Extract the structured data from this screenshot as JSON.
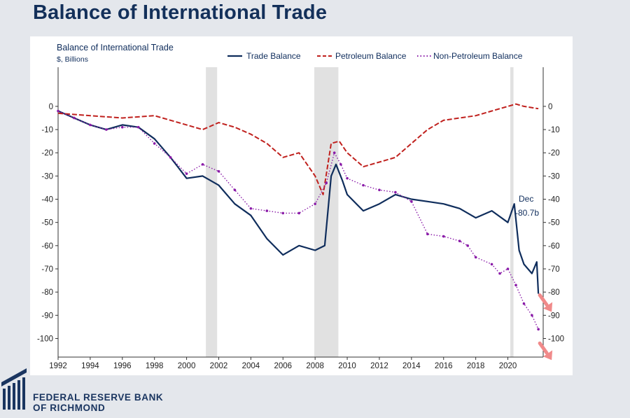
{
  "slide_title": "Balance of International Trade",
  "logo": {
    "line1": "FEDERAL RESERVE BANK",
    "line2": "OF RICHMOND",
    "mark": "building-columns-logo"
  },
  "colors": {
    "trade": "#0f2d5c",
    "petroleum": "#c0211e",
    "nonpetroleum": "#8a1ba8",
    "recession": "#d9d9d9",
    "arrow": "#f08a8a"
  },
  "chart_data": {
    "type": "line",
    "title": "Balance of International Trade",
    "subtitle": "$, Billions",
    "xlim": [
      1992,
      2022.2
    ],
    "ylim": [
      -108,
      6
    ],
    "x_ticks": [
      1992,
      1994,
      1996,
      1998,
      2000,
      2002,
      2004,
      2006,
      2008,
      2010,
      2012,
      2014,
      2016,
      2018,
      2020
    ],
    "y_ticks": [
      0,
      -10,
      -20,
      -30,
      -40,
      -50,
      -60,
      -70,
      -80,
      -90,
      -100
    ],
    "legend": {
      "position": "top-right"
    },
    "recessions": [
      [
        2001.2,
        2001.9
      ],
      [
        2007.95,
        2009.45
      ],
      [
        2020.15,
        2020.35
      ]
    ],
    "annotation": {
      "line1": "Dec",
      "line2": "-80.7b"
    },
    "series": [
      {
        "name": "Trade Balance",
        "style": "solid",
        "x": [
          1992,
          1993,
          1994,
          1995,
          1996,
          1997,
          1998,
          1999,
          2000,
          2001,
          2002,
          2003,
          2004,
          2005,
          2006,
          2007,
          2008,
          2008.6,
          2009,
          2009.3,
          2009.7,
          2010,
          2011,
          2012,
          2013,
          2014,
          2015,
          2016,
          2017,
          2018,
          2019,
          2020,
          2020.4,
          2020.7,
          2021,
          2021.5,
          2021.8,
          2021.9
        ],
        "y": [
          -2,
          -5,
          -8,
          -10,
          -8,
          -9,
          -14,
          -22,
          -31,
          -30,
          -34,
          -42,
          -47,
          -57,
          -64,
          -60,
          -62,
          -60,
          -30,
          -25,
          -32,
          -38,
          -45,
          -42,
          -38,
          -40,
          -41,
          -42,
          -44,
          -48,
          -45,
          -50,
          -42,
          -62,
          -68,
          -72,
          -67,
          -80.7
        ]
      },
      {
        "name": "Petroleum Balance",
        "style": "dashed",
        "x": [
          1992,
          1994,
          1996,
          1998,
          1999,
          2000,
          2001,
          2002,
          2003,
          2004,
          2005,
          2006,
          2007,
          2008,
          2008.5,
          2009,
          2009.5,
          2010,
          2011,
          2012,
          2013,
          2014,
          2015,
          2016,
          2017,
          2018,
          2019,
          2020,
          2020.5,
          2021,
          2021.9
        ],
        "y": [
          -3,
          -4,
          -5,
          -4,
          -6,
          -8,
          -10,
          -7,
          -9,
          -12,
          -16,
          -22,
          -20,
          -30,
          -38,
          -16,
          -15,
          -20,
          -26,
          -24,
          -22,
          -16,
          -10,
          -6,
          -5,
          -4,
          -2,
          0,
          1,
          0,
          -1
        ]
      },
      {
        "name": "Non-Petroleum Balance",
        "style": "dotted-markers",
        "x": [
          1992,
          1993,
          1994,
          1995,
          1996,
          1997,
          1998,
          1999,
          2000,
          2001,
          2002,
          2003,
          2004,
          2005,
          2006,
          2007,
          2008,
          2008.7,
          2009.2,
          2009.6,
          2010,
          2011,
          2012,
          2013,
          2014,
          2015,
          2016,
          2017,
          2017.5,
          2018,
          2019,
          2019.5,
          2020,
          2020.5,
          2021,
          2021.5,
          2021.9
        ],
        "y": [
          -2,
          -5,
          -8,
          -10,
          -9,
          -9,
          -16,
          -22,
          -29,
          -25,
          -28,
          -36,
          -44,
          -45,
          -46,
          -46,
          -42,
          -33,
          -20,
          -25,
          -31,
          -34,
          -36,
          -37,
          -41,
          -55,
          -56,
          -58,
          -60,
          -65,
          -68,
          -72,
          -70,
          -77,
          -85,
          -90,
          -96
        ]
      }
    ]
  }
}
